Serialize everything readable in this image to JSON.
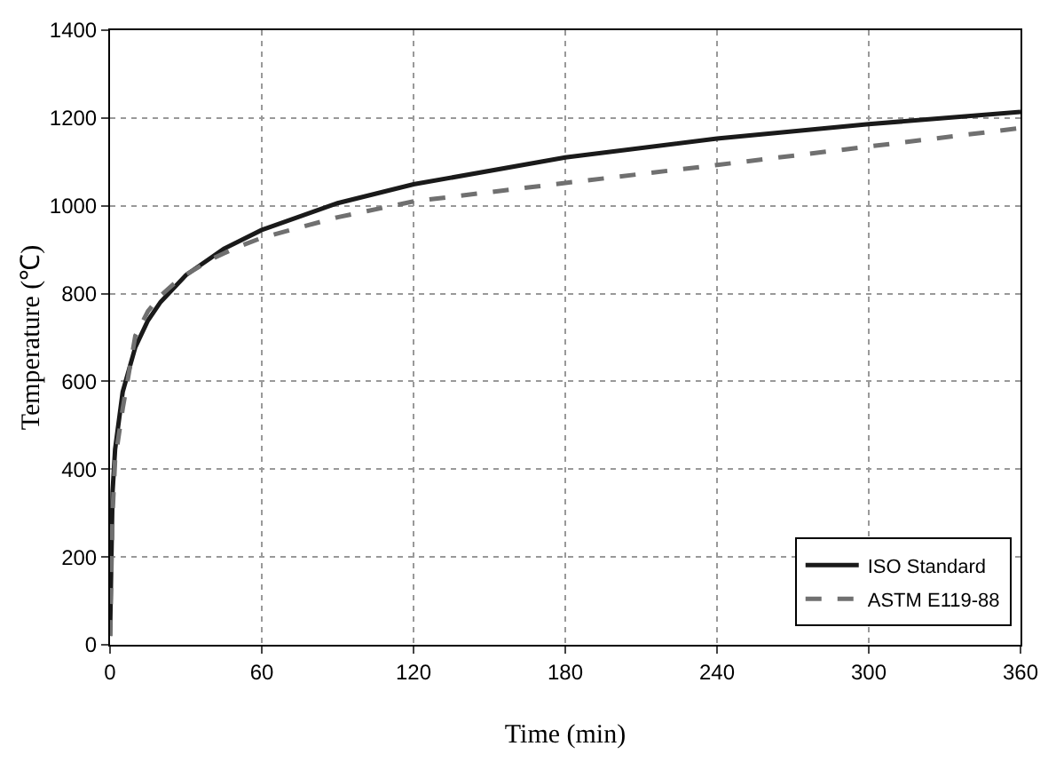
{
  "chart_data": {
    "type": "line",
    "xlabel": "Time (min)",
    "ylabel": "Temperature (℃)",
    "xlim": [
      0,
      360
    ],
    "xticks": [
      0,
      60,
      120,
      180,
      240,
      300,
      360
    ],
    "ylim": [
      0,
      1400
    ],
    "yticks": [
      0,
      200,
      400,
      600,
      800,
      1000,
      1200,
      1400
    ],
    "grid": true,
    "legend": "bottom right",
    "marker": "none",
    "series": [
      {
        "name": "ISO Standard",
        "color": "#1a1a1a",
        "line_style": "solid",
        "x": [
          0,
          1,
          2,
          5,
          10,
          15,
          20,
          30,
          45,
          60,
          90,
          120,
          180,
          240,
          300,
          360
        ],
        "values": [
          20,
          349,
          445,
          576,
          678,
          739,
          781,
          842,
          902,
          945,
          1006,
          1049,
          1110,
          1153,
          1186,
          1214
        ]
      },
      {
        "name": "ASTM E119-88",
        "color": "#707070",
        "line_style": "dashed",
        "x": [
          0,
          1,
          2,
          5,
          10,
          15,
          20,
          25,
          30,
          40,
          50,
          60,
          90,
          120,
          180,
          240,
          300,
          360
        ],
        "values": [
          20,
          300,
          420,
          538,
          704,
          760,
          795,
          821,
          843,
          878,
          905,
          927,
          974,
          1010,
          1052,
          1093,
          1135,
          1177
        ]
      }
    ]
  }
}
